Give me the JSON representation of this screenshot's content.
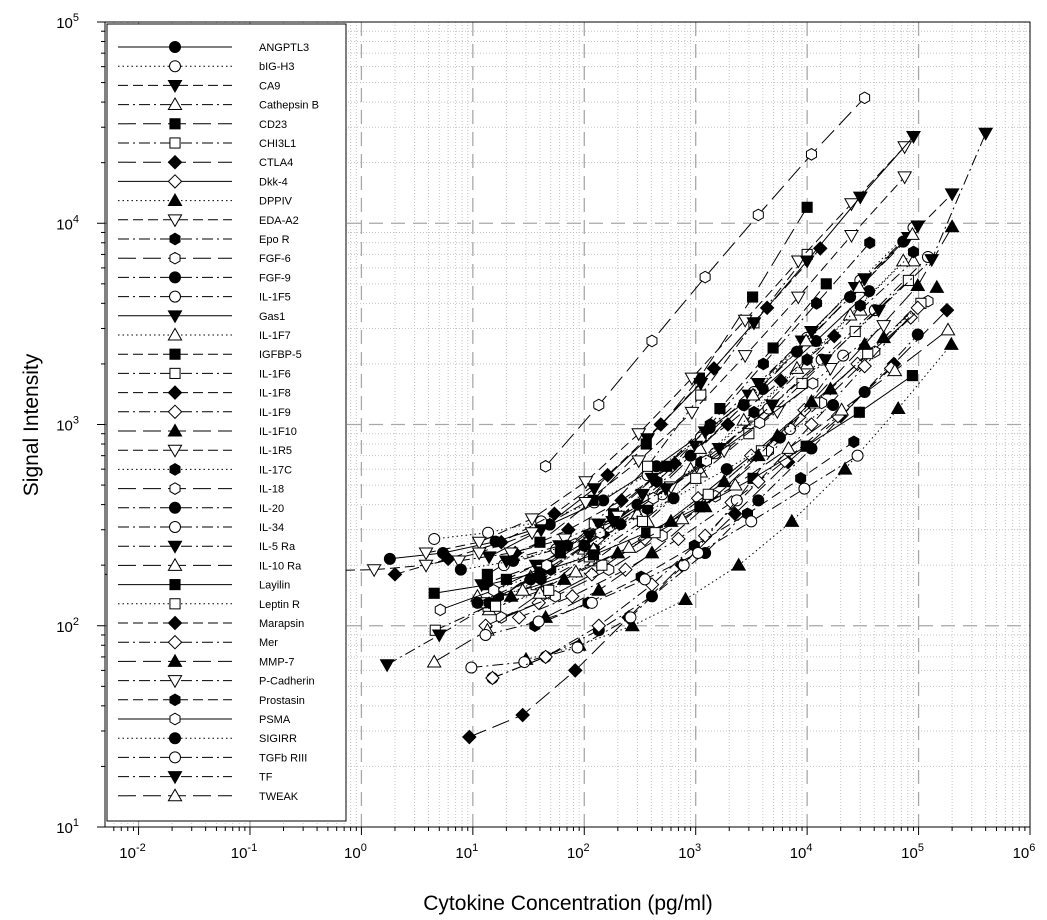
{
  "chart_data": {
    "type": "scatter",
    "title": "",
    "xlabel": "Cytokine Concentration (pg/ml)",
    "ylabel": "Signal Intensity",
    "xscale": "log",
    "yscale": "log",
    "xlim": [
      0.005,
      1000000
    ],
    "ylim": [
      10,
      100000
    ],
    "x_ticks": [
      {
        "base": "10",
        "exp": "-2",
        "value": 0.01
      },
      {
        "base": "10",
        "exp": "-1",
        "value": 0.1
      },
      {
        "base": "10",
        "exp": "0",
        "value": 1
      },
      {
        "base": "10",
        "exp": "1",
        "value": 10
      },
      {
        "base": "10",
        "exp": "2",
        "value": 100
      },
      {
        "base": "10",
        "exp": "3",
        "value": 1000
      },
      {
        "base": "10",
        "exp": "4",
        "value": 10000
      },
      {
        "base": "10",
        "exp": "5",
        "value": 100000
      },
      {
        "base": "10",
        "exp": "6",
        "value": 1000000
      }
    ],
    "y_ticks": [
      {
        "base": "10",
        "exp": "1",
        "value": 10
      },
      {
        "base": "10",
        "exp": "2",
        "value": 100
      },
      {
        "base": "10",
        "exp": "3",
        "value": 1000
      },
      {
        "base": "10",
        "exp": "4",
        "value": 10000
      },
      {
        "base": "10",
        "exp": "5",
        "value": 100000
      }
    ],
    "grid": "major dashed, minor dotted",
    "legend_position": "top-left",
    "series": [
      {
        "name": "ANGPTL3",
        "marker": "circle",
        "filled": true,
        "dash": "solid",
        "x": [
          1.8,
          5.4,
          16,
          49,
          148,
          444,
          1333,
          4000,
          12000,
          36000
        ],
        "y": [
          215,
          230,
          262,
          318,
          420,
          620,
          960,
          1500,
          2600,
          4600
        ]
      },
      {
        "name": "bIG-H3",
        "marker": "circle",
        "filled": false,
        "dash": "dotted",
        "x": [
          4.5,
          13.7,
          41,
          123,
          370,
          1111,
          3333,
          10000,
          30000,
          90000
        ],
        "y": [
          270,
          290,
          330,
          410,
          560,
          860,
          1450,
          2700,
          5200,
          9500
        ]
      },
      {
        "name": "CA9",
        "marker": "triangle-down",
        "filled": true,
        "dash": "dashed",
        "x": [
          12,
          37,
          111,
          333,
          1000,
          3000,
          9000,
          27000,
          81000,
          200000
        ],
        "y": [
          160,
          200,
          280,
          450,
          780,
          1400,
          2600,
          4800,
          8500,
          14000
        ]
      },
      {
        "name": "Cathepsin B",
        "marker": "triangle-up",
        "filled": false,
        "dash": "dashdot",
        "x": [
          14,
          41,
          123,
          370,
          1111,
          3333,
          10000,
          30000,
          90000
        ],
        "y": [
          120,
          150,
          210,
          330,
          580,
          1100,
          2000,
          3700,
          6500
        ]
      },
      {
        "name": "CD23",
        "marker": "square",
        "filled": true,
        "dash": "longdash",
        "x": [
          13.5,
          40,
          120,
          360,
          1080,
          3240,
          10000
        ],
        "y": [
          180,
          260,
          420,
          800,
          1700,
          4300,
          12000
        ]
      },
      {
        "name": "CHI3L1",
        "marker": "square",
        "filled": false,
        "dash": "dashdot",
        "x": [
          4.6,
          13.7,
          41,
          123,
          370,
          1111,
          3333,
          10000
        ],
        "y": [
          95,
          125,
          190,
          320,
          620,
          1400,
          3200,
          7000
        ]
      },
      {
        "name": "CTLA4",
        "marker": "diamond",
        "filled": true,
        "dash": "longdash",
        "x": [
          9.3,
          28,
          83,
          250,
          750,
          2250,
          6750,
          20000,
          60000,
          180000
        ],
        "y": [
          28,
          36,
          60,
          110,
          200,
          360,
          650,
          1100,
          2000,
          3700
        ]
      },
      {
        "name": "Dkk-4",
        "marker": "diamond",
        "filled": false,
        "dash": "solid",
        "x": [
          13,
          39,
          117,
          350,
          1050,
          3150,
          9450,
          28350,
          85000
        ],
        "y": [
          100,
          130,
          180,
          270,
          430,
          700,
          1180,
          2000,
          3400
        ]
      },
      {
        "name": "DPPIV",
        "marker": "triangle-up",
        "filled": true,
        "dash": "dotted",
        "x": [
          30,
          90,
          270,
          810,
          2430,
          7290,
          21870,
          65610,
          196830
        ],
        "y": [
          68,
          80,
          100,
          135,
          200,
          330,
          600,
          1200,
          2500
        ]
      },
      {
        "name": "EDA-A2",
        "marker": "triangle-down",
        "filled": false,
        "dash": "dashed",
        "x": [
          3.8,
          11.4,
          34,
          103,
          308,
          925,
          2777,
          8333,
          25000,
          75000
        ],
        "y": [
          230,
          260,
          340,
          520,
          900,
          1700,
          3300,
          6500,
          12500,
          24000
        ]
      },
      {
        "name": "Epo R",
        "marker": "hexagon",
        "filled": true,
        "dash": "dashdot",
        "x": [
          17,
          50,
          150,
          450,
          1350,
          4050,
          12150,
          36450
        ],
        "y": [
          140,
          190,
          290,
          520,
          1000,
          2000,
          4000,
          8000
        ]
      },
      {
        "name": "FGF-6",
        "marker": "hexagon",
        "filled": false,
        "dash": "longdash",
        "x": [
          45,
          135,
          405,
          1215,
          3645,
          10935,
          32805
        ],
        "y": [
          620,
          1250,
          2600,
          5400,
          11000,
          22000,
          42000
        ]
      },
      {
        "name": "FGF-9",
        "marker": "circle",
        "filled": true,
        "dash": "dashdot",
        "x": [
          15,
          45,
          135,
          405,
          1215,
          3645,
          10935,
          32805,
          98415
        ],
        "y": [
          55,
          70,
          95,
          140,
          230,
          420,
          760,
          1450,
          2800
        ]
      },
      {
        "name": "IL-1F5",
        "marker": "circle",
        "filled": false,
        "dash": "dashdot",
        "x": [
          19,
          56,
          167,
          500,
          1500,
          4500,
          13500,
          40500,
          121500
        ],
        "y": [
          200,
          240,
          310,
          450,
          720,
          1200,
          2100,
          3700,
          6800
        ]
      },
      {
        "name": "Gas1",
        "marker": "triangle-down",
        "filled": true,
        "dash": "solid",
        "x": [
          14,
          41,
          123,
          370,
          1111,
          3333,
          10000,
          30000,
          90000
        ],
        "y": [
          220,
          300,
          480,
          850,
          1600,
          3200,
          6500,
          13500,
          27000
        ]
      },
      {
        "name": "IL-1F7",
        "marker": "triangle-up",
        "filled": false,
        "dash": "dotted",
        "x": [
          11,
          33,
          100,
          300,
          900,
          2700,
          8100,
          24300,
          72900
        ],
        "y": [
          140,
          175,
          240,
          360,
          600,
          1050,
          1900,
          3500,
          6500
        ]
      },
      {
        "name": "IGFBP-5",
        "marker": "square",
        "filled": true,
        "dash": "dashed",
        "x": [
          20,
          61,
          183,
          550,
          1650,
          4950,
          14850
        ],
        "y": [
          170,
          230,
          360,
          620,
          1200,
          2400,
          5000
        ]
      },
      {
        "name": "IL-1F6",
        "marker": "square",
        "filled": false,
        "dash": "dashdot",
        "x": [
          12,
          37,
          111,
          333,
          1000,
          3000,
          9000,
          27000,
          81000
        ],
        "y": [
          130,
          160,
          220,
          330,
          540,
          900,
          1600,
          2900,
          5200
        ]
      },
      {
        "name": "IL-1F8",
        "marker": "diamond",
        "filled": true,
        "dash": "dashed",
        "x": [
          2,
          6,
          18,
          54,
          162,
          486,
          1458,
          4374,
          13122
        ],
        "y": [
          180,
          215,
          260,
          360,
          560,
          1000,
          1900,
          3800,
          7500
        ]
      },
      {
        "name": "IL-1F9",
        "marker": "diamond",
        "filled": false,
        "dash": "dashdot",
        "x": [
          26,
          78,
          234,
          700,
          2100,
          6300,
          18900,
          56700
        ],
        "y": [
          110,
          140,
          190,
          270,
          410,
          660,
          1100,
          1900
        ]
      },
      {
        "name": "IL-1F10",
        "marker": "triangle-up",
        "filled": true,
        "dash": "longdash",
        "x": [
          22,
          66,
          200,
          600,
          1800,
          5400,
          16200,
          48600,
          145800
        ],
        "y": [
          140,
          170,
          230,
          330,
          520,
          880,
          1500,
          2700,
          4800
        ]
      },
      {
        "name": "IL-1R5",
        "marker": "triangle-down",
        "filled": false,
        "dash": "dashed",
        "x": [
          1.3,
          3.8,
          11.4,
          34,
          103,
          308,
          925,
          2777,
          8333,
          25000,
          75000
        ],
        "y": [
          190,
          200,
          230,
          290,
          410,
          660,
          1150,
          2200,
          4300,
          8700,
          17000
        ]
      },
      {
        "name": "IL-17C",
        "marker": "hexagon",
        "filled": true,
        "dash": "dotted",
        "x": [
          14,
          41,
          123,
          370,
          1111,
          3333,
          10000,
          30000,
          90000
        ],
        "y": [
          130,
          170,
          240,
          380,
          650,
          1150,
          2100,
          3900,
          7200
        ]
      },
      {
        "name": "IL-18",
        "marker": "hexagon",
        "filled": false,
        "dash": "longdash",
        "x": [
          18,
          55,
          166,
          500,
          1500,
          4500,
          13500,
          40500,
          121500
        ],
        "y": [
          110,
          140,
          190,
          280,
          440,
          740,
          1280,
          2300,
          4100
        ]
      },
      {
        "name": "IL-20",
        "marker": "circle",
        "filled": true,
        "dash": "dashdot",
        "x": [
          11,
          33,
          100,
          300,
          900,
          2700,
          8100,
          24300,
          72900
        ],
        "y": [
          130,
          170,
          250,
          400,
          700,
          1250,
          2300,
          4300,
          8100
        ]
      },
      {
        "name": "IL-34",
        "marker": "circle",
        "filled": false,
        "dash": "dashdot",
        "x": [
          9.7,
          29,
          87,
          260,
          780,
          2340,
          7020,
          21060
        ],
        "y": [
          62,
          66,
          78,
          110,
          200,
          420,
          950,
          2200
        ]
      },
      {
        "name": "IL-5 Ra",
        "marker": "triangle-down",
        "filled": true,
        "dash": "dashdot",
        "x": [
          1.7,
          5,
          15,
          45,
          135,
          405,
          1215,
          3645,
          10935,
          32805,
          98415
        ],
        "y": [
          64,
          90,
          130,
          200,
          320,
          540,
          920,
          1600,
          2900,
          5300,
          9700
        ]
      },
      {
        "name": "IL-10 Ra",
        "marker": "triangle-up",
        "filled": false,
        "dash": "longdash",
        "x": [
          4.5,
          13.5,
          40,
          121,
          363,
          1090,
          3270,
          9800,
          29400,
          88000
        ],
        "y": [
          66,
          95,
          145,
          240,
          420,
          760,
          1400,
          2600,
          4800,
          8800
        ]
      },
      {
        "name": "Layilin",
        "marker": "square",
        "filled": true,
        "dash": "solid",
        "x": [
          4.5,
          13.5,
          40,
          121,
          363,
          1090,
          3270,
          9800,
          29400,
          88000
        ],
        "y": [
          145,
          160,
          185,
          225,
          290,
          390,
          540,
          780,
          1150,
          1750
        ]
      },
      {
        "name": "Leptin R",
        "marker": "square",
        "filled": false,
        "dash": "dotted",
        "x": [
          16,
          48,
          144,
          432,
          1296,
          3888,
          11664,
          34992,
          104976
        ],
        "y": [
          125,
          150,
          200,
          290,
          450,
          740,
          1280,
          2250,
          4000
        ]
      },
      {
        "name": "Marapsin",
        "marker": "diamond",
        "filled": true,
        "dash": "dashed",
        "x": [
          24,
          72,
          216,
          648,
          1944,
          5832,
          17496
        ],
        "y": [
          230,
          300,
          420,
          640,
          1000,
          1650,
          2750
        ]
      },
      {
        "name": "Mer",
        "marker": "diamond",
        "filled": false,
        "dash": "dashdot",
        "x": [
          15,
          45,
          135,
          405,
          1215,
          3645,
          10935,
          32805,
          98415
        ],
        "y": [
          55,
          70,
          100,
          160,
          280,
          520,
          1000,
          1950,
          3800
        ]
      },
      {
        "name": "MMP-7",
        "marker": "triangle-up",
        "filled": true,
        "dash": "longdash",
        "x": [
          45,
          135,
          405,
          1215,
          3645,
          10935,
          32805,
          98415,
          200000
        ],
        "y": [
          110,
          150,
          230,
          390,
          700,
          1300,
          2500,
          4900,
          9600
        ]
      },
      {
        "name": "P-Cadherin",
        "marker": "triangle-down",
        "filled": false,
        "dash": "dashdot",
        "x": [
          7.5,
          22,
          67,
          200,
          600,
          1800,
          5400,
          16200,
          48600
        ],
        "y": [
          210,
          230,
          270,
          350,
          490,
          740,
          1160,
          1900,
          3100
        ]
      },
      {
        "name": "Prostasin",
        "marker": "hexagon",
        "filled": true,
        "dash": "dashed",
        "x": [
          36,
          108,
          324,
          972,
          2916,
          8748,
          26244
        ],
        "y": [
          100,
          130,
          175,
          250,
          360,
          540,
          820
        ]
      },
      {
        "name": "PSMA",
        "marker": "hexagon",
        "filled": false,
        "dash": "solid",
        "x": [
          5.1,
          15.4,
          46,
          139,
          416,
          1250,
          3750,
          11250
        ],
        "y": [
          120,
          150,
          200,
          290,
          430,
          660,
          1020,
          1600
        ]
      },
      {
        "name": "SIGIRR",
        "marker": "circle",
        "filled": true,
        "dash": "dotted",
        "x": [
          7.8,
          23,
          70,
          211,
          633,
          1900,
          5700,
          17100
        ],
        "y": [
          190,
          210,
          250,
          320,
          430,
          600,
          860,
          1250
        ]
      },
      {
        "name": "TGFb RIII",
        "marker": "circle",
        "filled": false,
        "dash": "dashdot",
        "x": [
          13,
          39,
          117,
          350,
          1050,
          3150,
          9450,
          28350
        ],
        "y": [
          90,
          105,
          130,
          170,
          230,
          330,
          480,
          700
        ]
      },
      {
        "name": "TF",
        "marker": "triangle-down",
        "filled": true,
        "dash": "dashdot",
        "x": [
          20,
          60,
          180,
          540,
          1620,
          4860,
          14580,
          43740,
          131220,
          400000
        ],
        "y": [
          210,
          250,
          330,
          480,
          760,
          1250,
          2100,
          3700,
          6600,
          28000
        ]
      },
      {
        "name": "TWEAK",
        "marker": "triangle-up",
        "filled": false,
        "dash": "longdash",
        "x": [
          28,
          84,
          252,
          756,
          2268,
          6804,
          20412,
          61236,
          183708
        ],
        "y": [
          150,
          185,
          245,
          340,
          500,
          760,
          1180,
          1850,
          2950
        ]
      }
    ]
  }
}
